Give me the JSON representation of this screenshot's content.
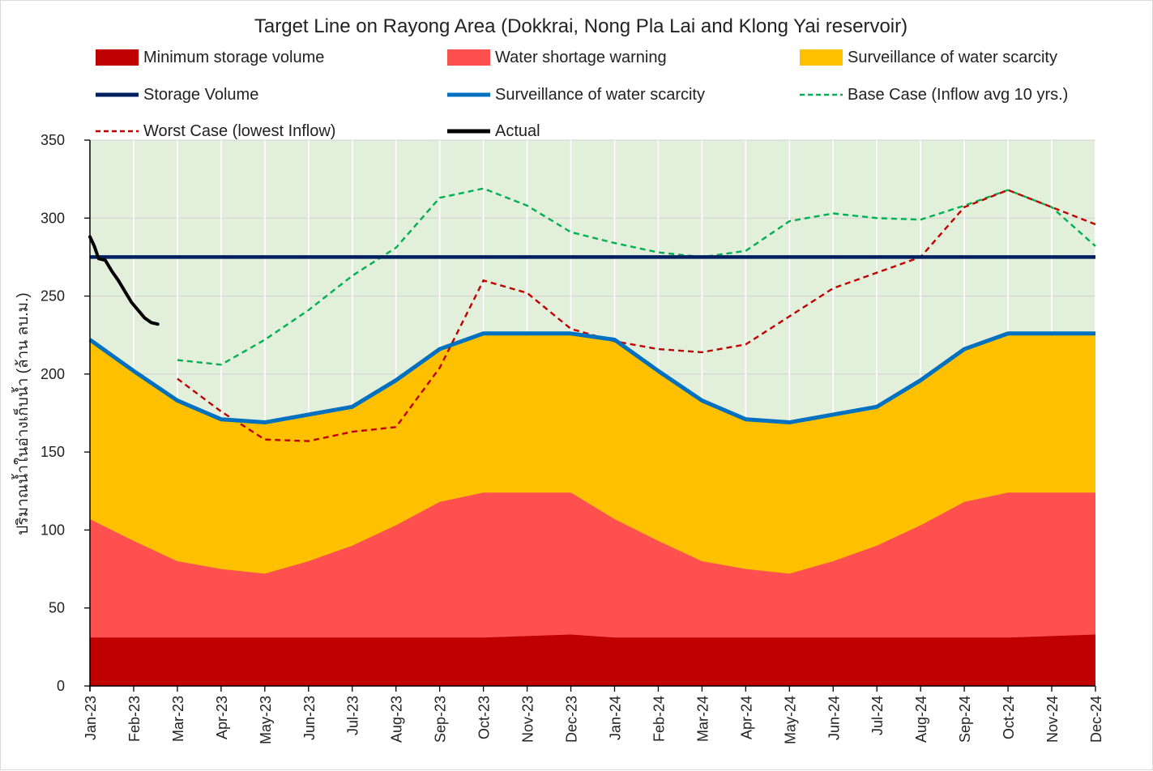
{
  "chart_data": {
    "type": "area",
    "title": "Target Line on Rayong Area (Dokkrai, Nong Pla Lai and Klong Yai reservoir)",
    "ylabel": "ปริมาณน้ำในอ่างเก็บน้ำ (ล้าน ลบ.ม.)",
    "xlabel": "",
    "ylim": [
      0,
      350
    ],
    "yticks": [
      0,
      50,
      100,
      150,
      200,
      250,
      300,
      350
    ],
    "categories": [
      "Jan-23",
      "Feb-23",
      "Mar-23",
      "Apr-23",
      "May-23",
      "Jun-23",
      "Jul-23",
      "Aug-23",
      "Sep-23",
      "Oct-23",
      "Nov-23",
      "Dec-23",
      "Jan-24",
      "Feb-24",
      "Mar-24",
      "Apr-24",
      "May-24",
      "Jun-24",
      "Jul-24",
      "Aug-24",
      "Sep-24",
      "Oct-24",
      "Nov-24",
      "Dec-24"
    ],
    "background_color": "#e2efda",
    "series": [
      {
        "name": "Minimum storage volume",
        "kind": "area",
        "color": "#c00000",
        "values": [
          31,
          31,
          31,
          31,
          31,
          31,
          31,
          31,
          31,
          31,
          32,
          33,
          31,
          31,
          31,
          31,
          31,
          31,
          31,
          31,
          31,
          31,
          32,
          33
        ]
      },
      {
        "name": "Water shortage warning",
        "kind": "area",
        "color": "#ff5050",
        "values": [
          107,
          93,
          80,
          75,
          72,
          80,
          90,
          103,
          118,
          124,
          124,
          124,
          107,
          93,
          80,
          75,
          72,
          80,
          90,
          103,
          118,
          124,
          124,
          124
        ]
      },
      {
        "name": "Surveillance of water scarcity",
        "kind": "area",
        "color": "#ffc000",
        "values": [
          222,
          202,
          183,
          171,
          169,
          174,
          179,
          196,
          216,
          226,
          226,
          226,
          222,
          202,
          183,
          171,
          169,
          174,
          179,
          196,
          216,
          226,
          226,
          226
        ]
      },
      {
        "name": "Storage Volume",
        "kind": "line",
        "color": "#002060",
        "values": [
          275,
          275,
          275,
          275,
          275,
          275,
          275,
          275,
          275,
          275,
          275,
          275,
          275,
          275,
          275,
          275,
          275,
          275,
          275,
          275,
          275,
          275,
          275,
          275
        ]
      },
      {
        "name": "Surveillance of water scarcity",
        "kind": "line",
        "color": "#0070c0",
        "values": [
          222,
          202,
          183,
          171,
          169,
          174,
          179,
          196,
          216,
          226,
          226,
          226,
          222,
          202,
          183,
          171,
          169,
          174,
          179,
          196,
          216,
          226,
          226,
          226
        ]
      },
      {
        "name": "Base Case (Inflow avg 10 yrs.)",
        "kind": "dashed",
        "color": "#00b050",
        "values": [
          null,
          null,
          209,
          206,
          222,
          241,
          263,
          281,
          313,
          319,
          308,
          291,
          284,
          278,
          275,
          279,
          298,
          303,
          300,
          299,
          308,
          318,
          307,
          282
        ]
      },
      {
        "name": "Worst Case (lowest Inflow)",
        "kind": "dashed",
        "color": "#c00000",
        "values": [
          null,
          null,
          197,
          176,
          158,
          157,
          163,
          166,
          204,
          260,
          252,
          229,
          221,
          216,
          214,
          219,
          237,
          255,
          265,
          275,
          307,
          318,
          307,
          296
        ]
      },
      {
        "name": "Actual",
        "kind": "line",
        "color": "#000000",
        "x": [
          0,
          0.1,
          0.2,
          0.35,
          0.5,
          0.65,
          0.8,
          0.95,
          1.1,
          1.25,
          1.4,
          1.55
        ],
        "values": [
          288,
          282,
          274,
          273,
          266,
          260,
          253,
          246,
          241,
          236,
          233,
          232
        ]
      }
    ]
  }
}
